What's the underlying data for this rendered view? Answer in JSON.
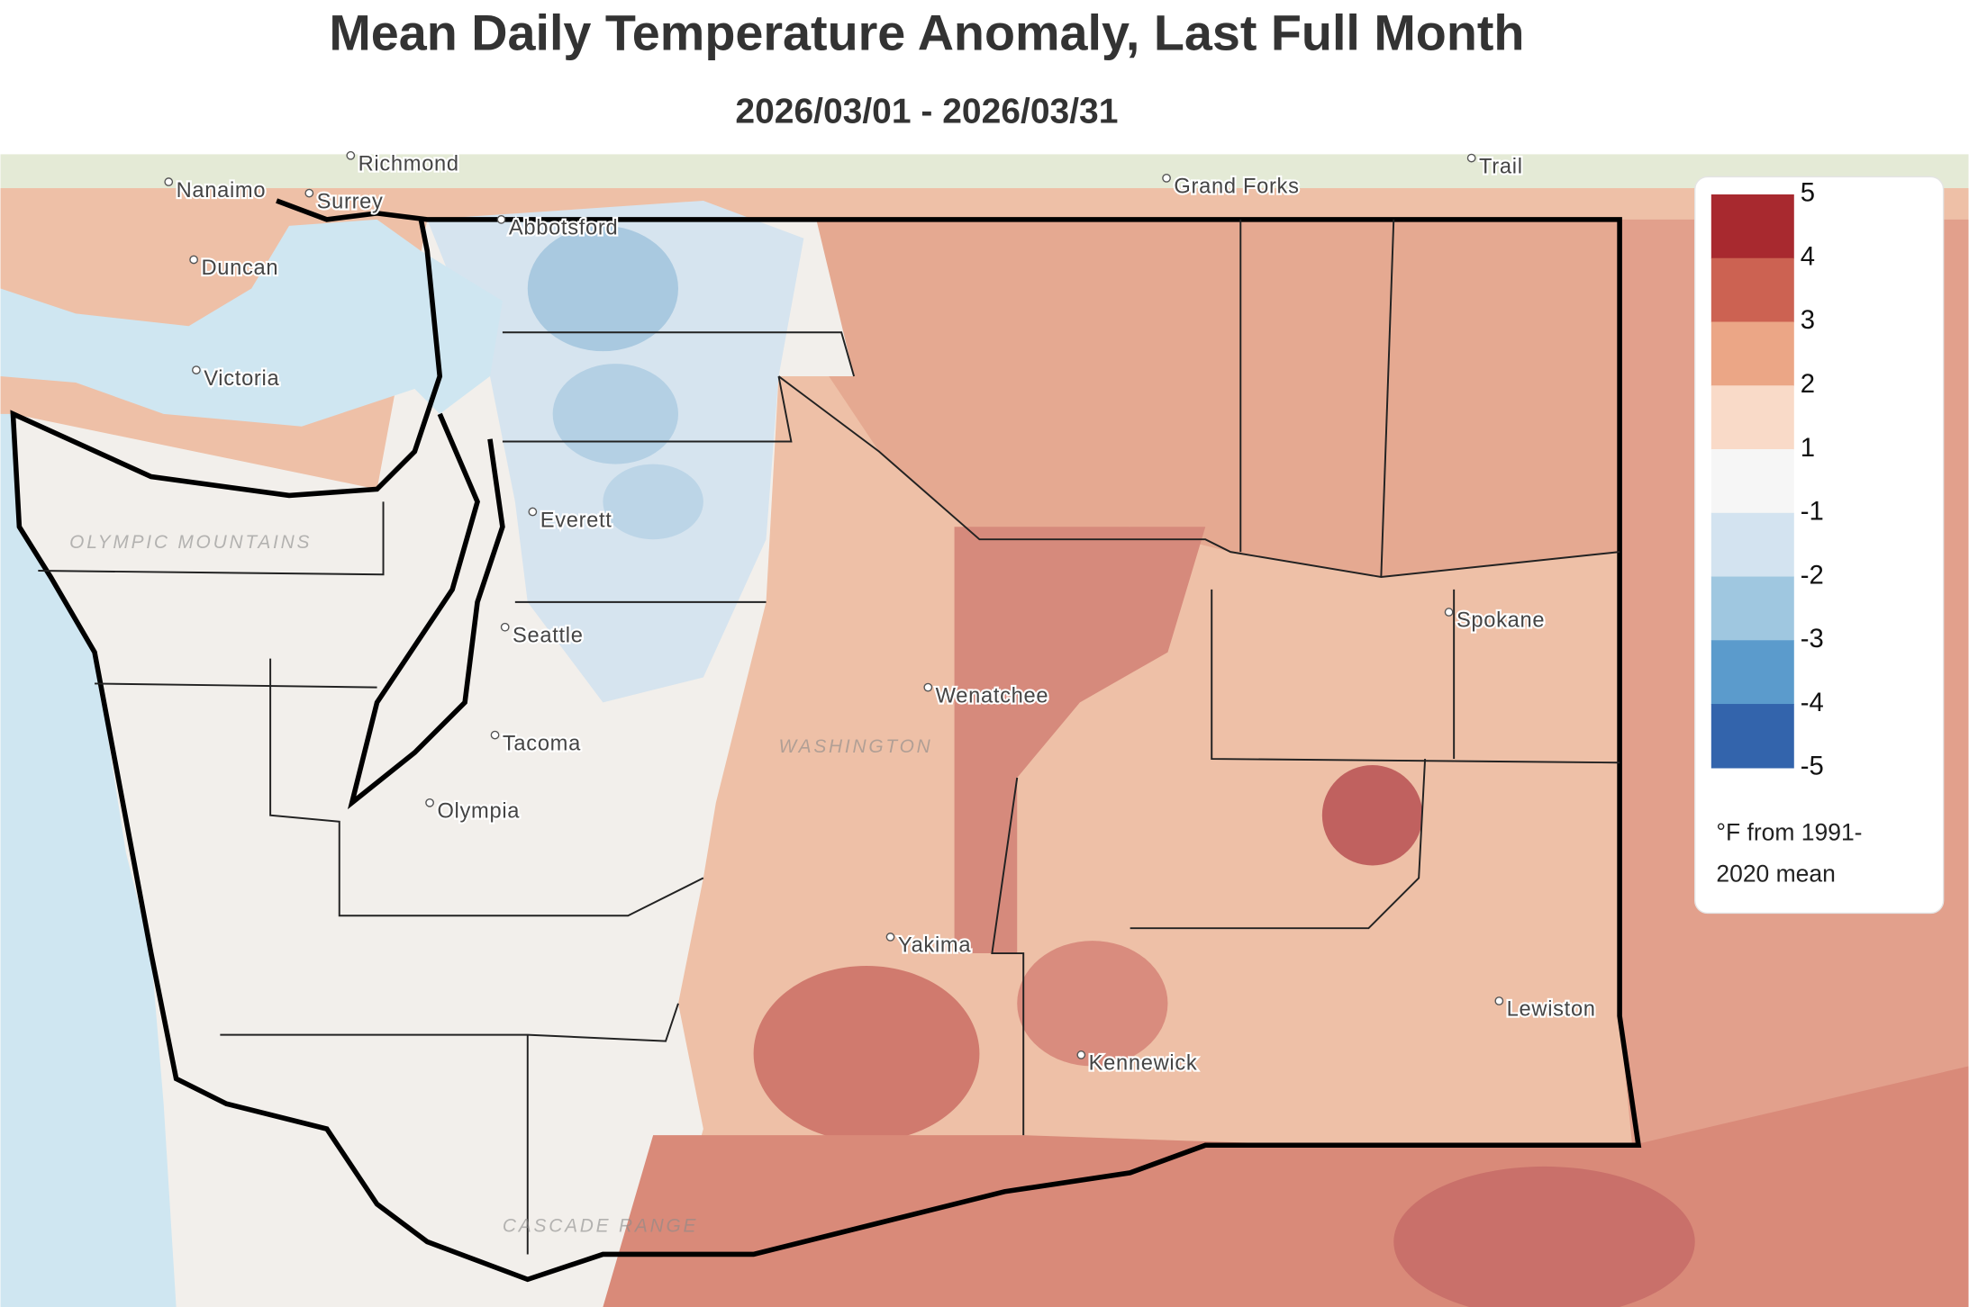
{
  "header": {
    "title": "Mean Daily Temperature Anomaly, Last Full Month",
    "subtitle": "2026/03/01 - 2026/03/31"
  },
  "legend": {
    "ticks": [
      5,
      4,
      3,
      2,
      1,
      -1,
      -2,
      -3,
      -4,
      -5
    ],
    "colors": [
      "#a8292f",
      "#cc6252",
      "#eba686",
      "#f9dac8",
      "#f6f6f6",
      "#d3e3f0",
      "#9fc7e0",
      "#5b9bcc",
      "#3364ac"
    ],
    "caption": [
      "°F from 1991-",
      "2020 mean"
    ]
  },
  "places": [
    "Richmond",
    "Nanaimo",
    "Surrey",
    "Duncan",
    "Victoria",
    "Abbotsford",
    "Grand Forks",
    "Trail",
    "Everett",
    "Seattle",
    "Tacoma",
    "Olympia",
    "Wenatchee",
    "Yakima",
    "Kennewick",
    "Spokane",
    "Lewiston",
    "WASHINGTON",
    "OLYMPIC MOUNTAINS",
    "CASCADE RANGE"
  ]
}
